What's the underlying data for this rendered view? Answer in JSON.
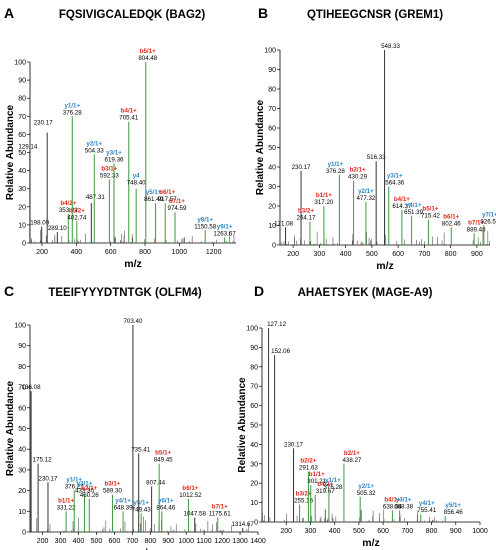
{
  "panels": [
    {
      "letter": "A",
      "title": "FQSIVIGCALEDQK (BAG2)",
      "chart_data": {
        "type": "bar",
        "xlabel": "m/z",
        "ylabel": "Relative Abundance",
        "xlim": [
          130,
          1330
        ],
        "ylim": [
          0,
          100
        ],
        "xticks": [
          200,
          400,
          600,
          800,
          1000,
          1200
        ],
        "yticks": [
          0,
          10,
          20,
          30,
          40,
          50,
          60,
          70,
          80,
          90,
          100
        ],
        "peaks": [
          {
            "mz": 129.14,
            "y": 51,
            "lbl": "129.14"
          },
          {
            "mz": 198.09,
            "y": 9,
            "lbl": "198.09"
          },
          {
            "mz": 230.17,
            "y": 61,
            "lbl": "230.17"
          },
          {
            "mz": 289.1,
            "y": 6,
            "lbl": "289.10"
          },
          {
            "mz": 353.21,
            "y": 16,
            "lbl": "353.21",
            "ion": "b4/2+",
            "ionColor": "#e0261c"
          },
          {
            "mz": 376.28,
            "y": 70,
            "lbl": "376.28",
            "ion": "y1/1+",
            "ionColor": "#2a86c8"
          },
          {
            "mz": 402.74,
            "y": 12,
            "lbl": "402.74",
            "ion": "b5/2+",
            "ionColor": "#e0261c"
          },
          {
            "mz": 487.31,
            "y": 22,
            "lbl": "487.31"
          },
          {
            "mz": 504.33,
            "y": 49,
            "lbl": "504.33",
            "ion": "y2/1+",
            "ionColor": "#2a86c8"
          },
          {
            "mz": 592.33,
            "y": 35,
            "lbl": "592.33",
            "ion": "b3/1+",
            "ionColor": "#e0261c"
          },
          {
            "mz": 619.36,
            "y": 44,
            "lbl": "619.36",
            "ion": "y3/1+",
            "ionColor": "#2a86c8"
          },
          {
            "mz": 705.41,
            "y": 67,
            "lbl": "705.41",
            "ion": "b4/1+",
            "ionColor": "#e0261c"
          },
          {
            "mz": 748.4,
            "y": 30,
            "lbl": "748.40",
            "ion": "y4",
            "ionColor": "#2a86c8"
          },
          {
            "mz": 804.48,
            "y": 100,
            "lbl": "804.48",
            "ion": "b5/1+",
            "ionColor": "#e0261c"
          },
          {
            "mz": 861.49,
            "y": 22,
            "lbl": "861.49",
            "ion": "y5/1+",
            "ionColor": "#2a86c8"
          },
          {
            "mz": 917.57,
            "y": 22,
            "lbl": "917.57",
            "ion": "b6/1+",
            "ionColor": "#e0261c"
          },
          {
            "mz": 974.59,
            "y": 17,
            "lbl": "974.59",
            "ion": "b7/1+",
            "ionColor": "#e0261c"
          },
          {
            "mz": 1150.58,
            "y": 7,
            "lbl": "1150.58",
            "ion": "y8/1+",
            "ionColor": "#2a86c8"
          },
          {
            "mz": 1263.67,
            "y": 3,
            "lbl": "1263.67",
            "ion": "y9/1+",
            "ionColor": "#2a86c8"
          }
        ]
      }
    },
    {
      "letter": "B",
      "title": "QTIHEEGCNSR (GREM1)",
      "chart_data": {
        "type": "bar",
        "xlabel": "m/z",
        "ylabel": "Relative Abundance",
        "xlim": [
          150,
          950
        ],
        "ylim": [
          0,
          100
        ],
        "xticks": [
          200,
          300,
          400,
          500,
          600,
          700,
          800,
          900
        ],
        "yticks": [
          0,
          10,
          20,
          30,
          40,
          50,
          60,
          70,
          80,
          90,
          100
        ],
        "peaks": [
          {
            "mz": 171.08,
            "y": 9,
            "lbl": "171.08"
          },
          {
            "mz": 230.17,
            "y": 38,
            "lbl": "230.17"
          },
          {
            "mz": 264.17,
            "y": 12,
            "lbl": "264.17",
            "ion": "b3/2+",
            "ionColor": "#e0261c"
          },
          {
            "mz": 317.2,
            "y": 20,
            "lbl": "317.20",
            "ion": "b1/1+",
            "ionColor": "#e0261c"
          },
          {
            "mz": 376.28,
            "y": 36,
            "lbl": "376.28",
            "ion": "y1/1+",
            "ionColor": "#2a86c8"
          },
          {
            "mz": 430.29,
            "y": 33,
            "lbl": "430.29",
            "ion": "b2/1+",
            "ionColor": "#e0261c"
          },
          {
            "mz": 477.32,
            "y": 22,
            "lbl": "477.32",
            "ion": "y2/1+",
            "ionColor": "#2a86c8"
          },
          {
            "mz": 516.33,
            "y": 43,
            "lbl": "516.33"
          },
          {
            "mz": 548.33,
            "y": 100,
            "lbl": "548.33"
          },
          {
            "mz": 564.36,
            "y": 30,
            "lbl": "564.36",
            "ion": "y3/1+",
            "ionColor": "#2a86c8"
          },
          {
            "mz": 614.37,
            "y": 18,
            "lbl": "614.37",
            "ion": "b4/1+",
            "ionColor": "#e0261c"
          },
          {
            "mz": 651.39,
            "y": 15,
            "lbl": "651.39",
            "ion": "y4/1+",
            "ionColor": "#2a86c8"
          },
          {
            "mz": 715.42,
            "y": 13,
            "lbl": "715.42",
            "ion": "b5/1+",
            "ionColor": "#e0261c"
          },
          {
            "mz": 802.46,
            "y": 9,
            "lbl": "802.46",
            "ion": "b6/1+",
            "ionColor": "#e0261c"
          },
          {
            "mz": 889.48,
            "y": 6,
            "lbl": "889.48",
            "ion": "b7/1+",
            "ionColor": "#e0261c"
          },
          {
            "mz": 926.51,
            "y": 10,
            "lbl": "926.51",
            "ion": "y7/1+",
            "ionColor": "#2a86c8"
          }
        ]
      }
    },
    {
      "letter": "C",
      "title": "TEEIFYYYDTNTGK (OLFM4)",
      "chart_data": {
        "type": "bar",
        "xlabel": "m/z",
        "ylabel": "Relative Abundance",
        "xlim": [
          130,
          1400
        ],
        "ylim": [
          0,
          100
        ],
        "xticks": [
          200,
          300,
          400,
          500,
          600,
          700,
          800,
          900,
          1000,
          1100,
          1200,
          1300,
          1400
        ],
        "yticks": [
          0,
          10,
          20,
          30,
          40,
          50,
          60,
          70,
          80,
          90,
          100
        ],
        "peaks": [
          {
            "mz": 136.08,
            "y": 68,
            "lbl": "136.08"
          },
          {
            "mz": 175.12,
            "y": 33,
            "lbl": "175.12"
          },
          {
            "mz": 230.17,
            "y": 24,
            "lbl": "230.17"
          },
          {
            "mz": 331.22,
            "y": 10,
            "lbl": "331.22",
            "ion": "b1/1+",
            "ionColor": "#e0261c"
          },
          {
            "mz": 376.27,
            "y": 20,
            "lbl": "376.27",
            "ion": "y1/1+",
            "ionColor": "#2a86c8"
          },
          {
            "mz": 433.3,
            "y": 18,
            "lbl": "433.30",
            "ion": "y2/1+",
            "ionColor": "#2a86c8"
          },
          {
            "mz": 460.26,
            "y": 16,
            "lbl": "460.26",
            "ion": "b2/1+",
            "ionColor": "#e0261c"
          },
          {
            "mz": 589.3,
            "y": 18,
            "lbl": "589.30",
            "ion": "b3/1+",
            "ionColor": "#e0261c"
          },
          {
            "mz": 648.39,
            "y": 10,
            "lbl": "648.39",
            "ion": "y4/1+",
            "ionColor": "#2a86c8"
          },
          {
            "mz": 703.4,
            "y": 100,
            "lbl": "703.40"
          },
          {
            "mz": 735.41,
            "y": 38,
            "lbl": "735.41"
          },
          {
            "mz": 749.43,
            "y": 9,
            "lbl": "749.43",
            "ion": "y5/1+",
            "ionColor": "#2a86c8"
          },
          {
            "mz": 807.44,
            "y": 22,
            "lbl": "807.44"
          },
          {
            "mz": 849.45,
            "y": 33,
            "lbl": "849.45",
            "ion": "b5/1+",
            "ionColor": "#e0261c"
          },
          {
            "mz": 864.46,
            "y": 10,
            "lbl": "864.46",
            "ion": "y6/1+",
            "ionColor": "#2a86c8"
          },
          {
            "mz": 1012.52,
            "y": 16,
            "lbl": "1012.52",
            "ion": "b6/1+",
            "ionColor": "#e0261c"
          },
          {
            "mz": 1047.58,
            "y": 7,
            "lbl": "1047.58"
          },
          {
            "mz": 1175.61,
            "y": 7,
            "lbl": "1175.61",
            "ion": "b7/1+",
            "ionColor": "#e0261c"
          },
          {
            "mz": 1314.67,
            "y": 2,
            "lbl": "1314.67"
          }
        ]
      }
    },
    {
      "letter": "D",
      "title": "AHAETSYEK (MAGE-A9)",
      "chart_data": {
        "type": "bar",
        "xlabel": "m/z",
        "ylabel": "Relative Abundance",
        "xlim": [
          100,
          1000
        ],
        "ylim": [
          0,
          100
        ],
        "xticks": [
          200,
          300,
          400,
          500,
          600,
          700,
          800,
          900,
          1000
        ],
        "yticks": [
          0,
          10,
          20,
          30,
          40,
          50,
          60,
          70,
          80,
          90,
          100
        ],
        "peaks": [
          {
            "mz": 127.12,
            "y": 100,
            "lbl": "127.12"
          },
          {
            "mz": 152.06,
            "y": 86,
            "lbl": "152.06"
          },
          {
            "mz": 230.17,
            "y": 38,
            "lbl": "230.17"
          },
          {
            "mz": 255.16,
            "y": 9,
            "lbl": "255.16",
            "ion": "b3/2+",
            "ionColor": "#e0261c"
          },
          {
            "mz": 291.63,
            "y": 26,
            "lbl": "291.63",
            "ion": "b2/2+",
            "ionColor": "#e0261c"
          },
          {
            "mz": 301.21,
            "y": 19,
            "lbl": "301.21",
            "ion": "b1/1+",
            "ionColor": "#e0261c"
          },
          {
            "mz": 319.67,
            "y": 14,
            "lbl": "319.67",
            "ion": "b4/2+",
            "ionColor": "#e0261c"
          },
          {
            "mz": 376.28,
            "y": 16,
            "lbl": "376.28",
            "ion": "y1/1+",
            "ionColor": "#2a86c8"
          },
          {
            "mz": 438.27,
            "y": 30,
            "lbl": "438.27",
            "ion": "b2/1+",
            "ionColor": "#e0261c"
          },
          {
            "mz": 505.32,
            "y": 13,
            "lbl": "505.32",
            "ion": "y2/1+",
            "ionColor": "#2a86c8"
          },
          {
            "mz": 638.34,
            "y": 6,
            "lbl": "638.34",
            "ion": "b4/1+",
            "ionColor": "#e0261c"
          },
          {
            "mz": 668.38,
            "y": 6,
            "lbl": "668.38",
            "ion": "y3/1+",
            "ionColor": "#2a86c8"
          },
          {
            "mz": 755.41,
            "y": 4,
            "lbl": "755.41",
            "ion": "y4/1+",
            "ionColor": "#2a86c8"
          },
          {
            "mz": 856.46,
            "y": 3,
            "lbl": "856.46",
            "ion": "y5/1+",
            "ionColor": "#2a86c8"
          }
        ]
      }
    }
  ]
}
